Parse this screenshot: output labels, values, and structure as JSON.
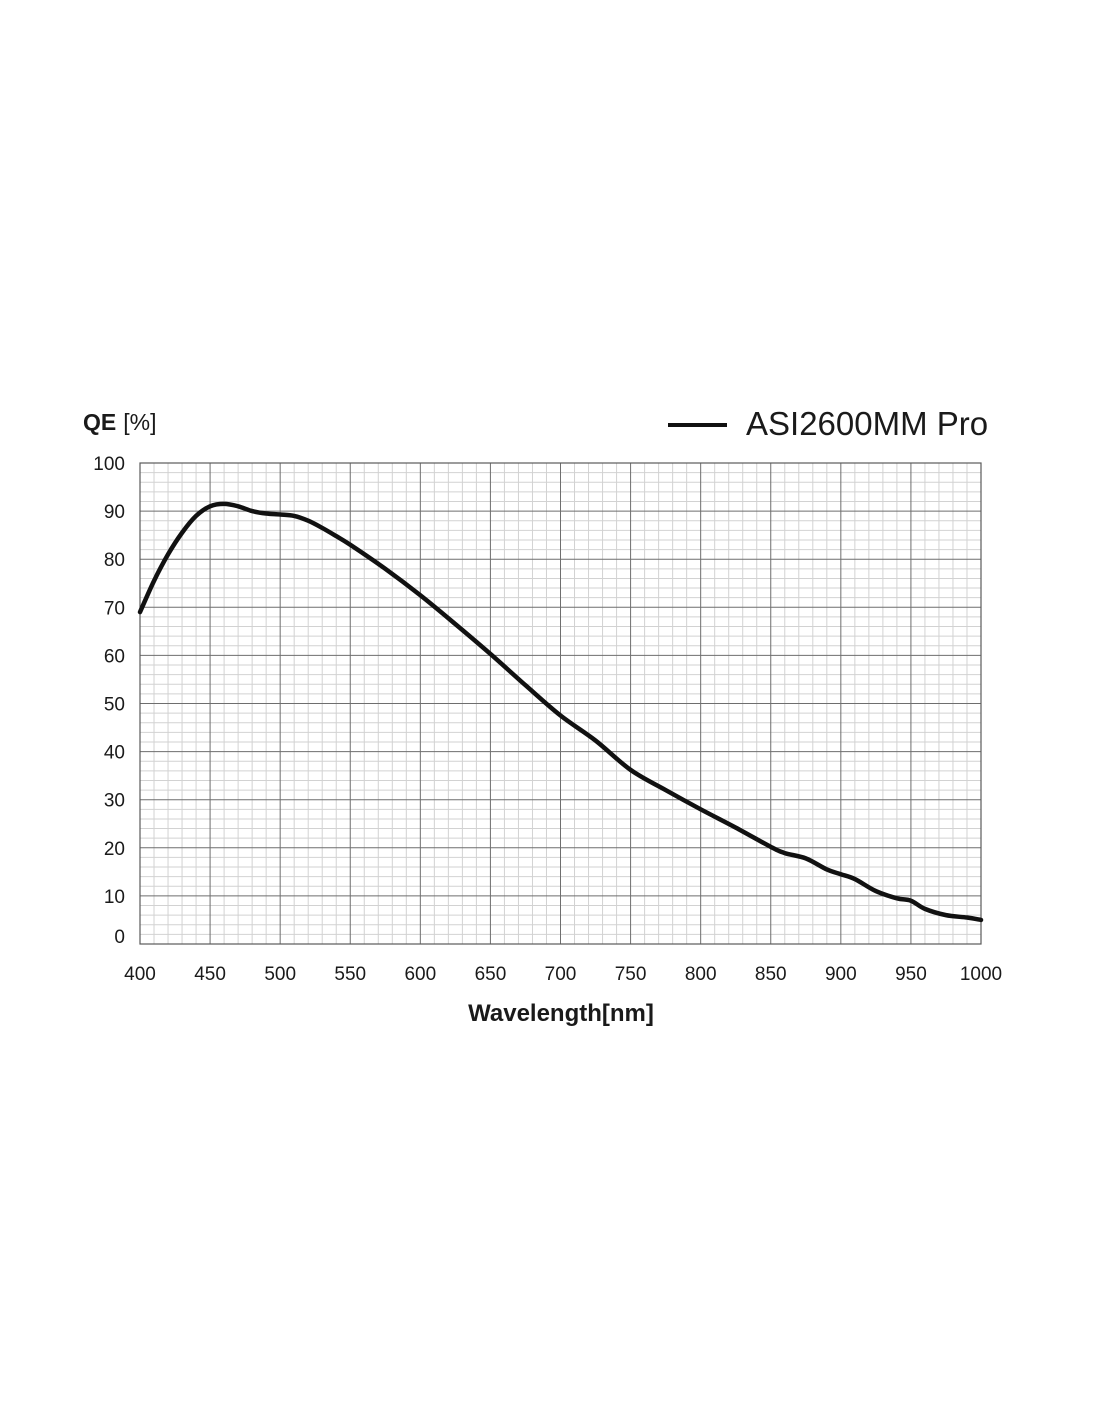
{
  "chart_data": {
    "type": "line",
    "ylabel_main": "QE",
    "ylabel_unit": "[%]",
    "xlabel": "Wavelength[nm]",
    "xlim": [
      400,
      1000
    ],
    "ylim": [
      0,
      100
    ],
    "grid": true,
    "legend_position": "top-right",
    "x_ticks": [
      "400",
      "450",
      "500",
      "550",
      "600",
      "650",
      "700",
      "750",
      "800",
      "850",
      "900",
      "950",
      "1000"
    ],
    "y_ticks": [
      "0",
      "10",
      "20",
      "30",
      "40",
      "50",
      "60",
      "70",
      "80",
      "90",
      "100"
    ],
    "series": [
      {
        "name": "ASI2600MM Pro",
        "color": "#111111",
        "x": [
          400,
          410,
          420,
          430,
          440,
          450,
          460,
          470,
          480,
          490,
          500,
          510,
          520,
          530,
          540,
          550,
          575,
          600,
          625,
          650,
          675,
          700,
          725,
          750,
          775,
          800,
          825,
          850,
          860,
          875,
          890,
          900,
          910,
          925,
          940,
          950,
          960,
          975,
          990,
          1000
        ],
        "y": [
          69,
          75.5,
          81,
          85.5,
          89,
          91,
          91.5,
          91,
          90,
          89.5,
          89.3,
          89,
          88,
          86.5,
          84.8,
          83,
          78,
          72.5,
          66.5,
          60.3,
          53.8,
          47.5,
          42.3,
          36.2,
          32,
          28,
          24.2,
          20.2,
          18.9,
          17.8,
          15.5,
          14.5,
          13.5,
          11,
          9.5,
          9,
          7.3,
          6,
          5.5,
          5
        ]
      }
    ]
  }
}
